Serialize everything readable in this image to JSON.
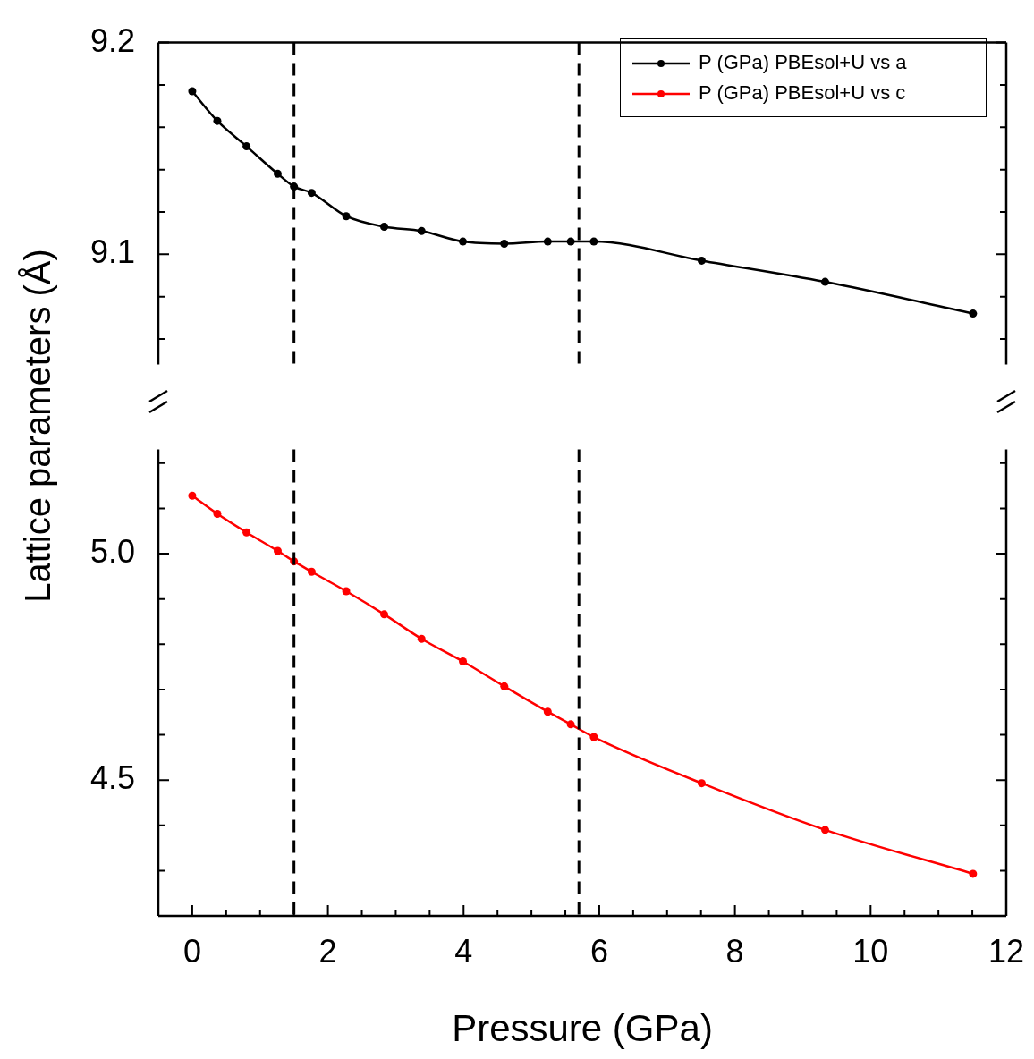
{
  "chart_data": [
    {
      "type": "line",
      "ylabel": "Lattice parameters (Å)",
      "xlim": [
        -0.5,
        12
      ],
      "ylim": [
        9.048,
        9.2
      ],
      "yticks": [
        9.2,
        {
          "value": 9.18,
          "label": null
        },
        {
          "value": 9.16,
          "label": null
        },
        {
          "value": 9.14,
          "label": null
        },
        {
          "value": 9.12,
          "label": null
        },
        9.1,
        {
          "value": 9.08,
          "label": null
        },
        {
          "value": 9.06,
          "label": null
        }
      ],
      "tick_labels": "y",
      "legend": "top right",
      "marker": "circle",
      "ref_lines": [
        {
          "axis": "x",
          "value": 1.5,
          "color": "#000000",
          "line_style": "dashed"
        },
        {
          "axis": "x",
          "value": 5.7,
          "color": "#000000",
          "line_style": "dashed"
        }
      ],
      "x": [
        0,
        0.37,
        0.8,
        1.26,
        1.5,
        1.76,
        2.27,
        2.83,
        3.38,
        3.99,
        4.6,
        5.24,
        5.58,
        5.92,
        7.51,
        9.33,
        11.51
      ],
      "series": [
        {
          "name": "P (GPa) PBEsol+U vs a",
          "color": "#000000",
          "values": [
            9.177,
            9.163,
            9.151,
            9.138,
            9.132,
            9.129,
            9.118,
            9.113,
            9.111,
            9.106,
            9.105,
            9.106,
            9.106,
            9.106,
            9.097,
            9.087,
            9.072
          ]
        }
      ]
    },
    {
      "type": "line",
      "xlabel": "Pressure (GPa)",
      "xlim": [
        -0.5,
        12
      ],
      "ylim": [
        4.2,
        5.23
      ],
      "xticks": [
        0,
        {
          "value": 0.5,
          "label": null
        },
        {
          "value": 1,
          "label": null
        },
        {
          "value": 1.5,
          "label": null
        },
        2,
        {
          "value": 2.5,
          "label": null
        },
        {
          "value": 3,
          "label": null
        },
        {
          "value": 3.5,
          "label": null
        },
        4,
        {
          "value": 4.5,
          "label": null
        },
        {
          "value": 5,
          "label": null
        },
        {
          "value": 5.5,
          "label": null
        },
        6,
        {
          "value": 6.5,
          "label": null
        },
        {
          "value": 7,
          "label": null
        },
        {
          "value": 7.5,
          "label": null
        },
        8,
        {
          "value": 8.5,
          "label": null
        },
        {
          "value": 9,
          "label": null
        },
        {
          "value": 9.5,
          "label": null
        },
        10,
        {
          "value": 10.5,
          "label": null
        },
        {
          "value": 11,
          "label": null
        },
        {
          "value": 11.5,
          "label": null
        },
        12
      ],
      "yticks": [
        {
          "value": 5.2,
          "label": null
        },
        {
          "value": 5.1,
          "label": null
        },
        {
          "value": 5,
          "label": "5.0"
        },
        {
          "value": 4.9,
          "label": null
        },
        {
          "value": 4.8,
          "label": null
        },
        {
          "value": 4.7,
          "label": null
        },
        {
          "value": 4.6,
          "label": null
        },
        4.5,
        {
          "value": 4.4,
          "label": null
        },
        {
          "value": 4.3,
          "label": null
        }
      ],
      "legend": "top right",
      "marker": "circle",
      "ref_lines": [
        {
          "axis": "x",
          "value": 1.5,
          "color": "#000000",
          "line_style": "dashed"
        },
        {
          "axis": "x",
          "value": 5.7,
          "color": "#000000",
          "line_style": "dashed"
        }
      ],
      "x": [
        0,
        0.37,
        0.8,
        1.26,
        1.5,
        1.76,
        2.27,
        2.83,
        3.38,
        3.99,
        4.6,
        5.24,
        5.58,
        5.92,
        7.51,
        9.33,
        11.51
      ],
      "series": [
        {
          "name": "P (GPa) PBEsol+U vs c",
          "color": "#ff0000",
          "values": [
            5.128,
            5.088,
            5.047,
            5.006,
            4.983,
            4.96,
            4.917,
            4.866,
            4.812,
            4.762,
            4.707,
            4.651,
            4.623,
            4.595,
            4.493,
            4.39,
            4.293
          ]
        }
      ]
    }
  ]
}
